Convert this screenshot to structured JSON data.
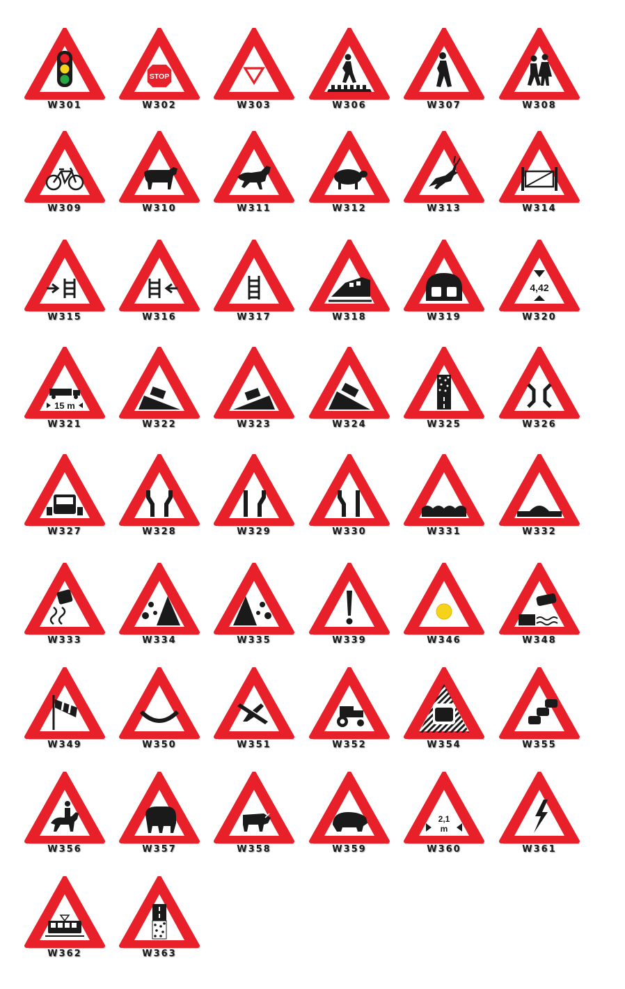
{
  "palette": {
    "border": "#e8202a",
    "field": "#ffffff",
    "symbol": "#1a1a1a",
    "shadow": "#9a9a9a"
  },
  "signs": [
    {
      "code": "W301",
      "symbol": "traffic-light-icon"
    },
    {
      "code": "W302",
      "symbol": "stop-sign-icon",
      "text": "STOP"
    },
    {
      "code": "W303",
      "symbol": "yield-icon"
    },
    {
      "code": "W306",
      "symbol": "pedestrian-crossing-icon"
    },
    {
      "code": "W307",
      "symbol": "pedestrian-icon"
    },
    {
      "code": "W308",
      "symbol": "children-icon"
    },
    {
      "code": "W309",
      "symbol": "bicycle-icon"
    },
    {
      "code": "W310",
      "symbol": "cow-icon"
    },
    {
      "code": "W311",
      "symbol": "horse-icon"
    },
    {
      "code": "W312",
      "symbol": "sheep-icon"
    },
    {
      "code": "W313",
      "symbol": "antelope-icon"
    },
    {
      "code": "W314",
      "symbol": "gate-icon"
    },
    {
      "code": "W315",
      "symbol": "level-crossing-right-icon"
    },
    {
      "code": "W316",
      "symbol": "level-crossing-left-icon"
    },
    {
      "code": "W317",
      "symbol": "level-crossing-icon"
    },
    {
      "code": "W318",
      "symbol": "train-icon"
    },
    {
      "code": "W319",
      "symbol": "tunnel-icon"
    },
    {
      "code": "W320",
      "symbol": "height-limit-icon",
      "text": "4,42"
    },
    {
      "code": "W321",
      "symbol": "length-limit-icon",
      "text": "15 m"
    },
    {
      "code": "W322",
      "symbol": "steep-descent-icon"
    },
    {
      "code": "W323",
      "symbol": "steep-ascent-icon"
    },
    {
      "code": "W324",
      "symbol": "truck-descent-icon"
    },
    {
      "code": "W325",
      "symbol": "gravel-road-icon"
    },
    {
      "code": "W326",
      "symbol": "narrow-bridge-icon"
    },
    {
      "code": "W327",
      "symbol": "narrow-road-truck-icon"
    },
    {
      "code": "W328",
      "symbol": "road-narrows-both-icon"
    },
    {
      "code": "W329",
      "symbol": "road-narrows-right-icon"
    },
    {
      "code": "W330",
      "symbol": "road-narrows-left-icon"
    },
    {
      "code": "W331",
      "symbol": "uneven-road-icon"
    },
    {
      "code": "W332",
      "symbol": "speed-hump-icon"
    },
    {
      "code": "W333",
      "symbol": "slippery-road-icon"
    },
    {
      "code": "W334",
      "symbol": "falling-rocks-left-icon"
    },
    {
      "code": "W335",
      "symbol": "falling-rocks-right-icon"
    },
    {
      "code": "W339",
      "symbol": "general-warning-icon"
    },
    {
      "code": "W346",
      "symbol": "yellow-dot-icon"
    },
    {
      "code": "W348",
      "symbol": "quay-edge-icon"
    },
    {
      "code": "W349",
      "symbol": "windsock-icon"
    },
    {
      "code": "W350",
      "symbol": "dip-icon"
    },
    {
      "code": "W351",
      "symbol": "low-flying-aircraft-icon"
    },
    {
      "code": "W352",
      "symbol": "tractor-icon"
    },
    {
      "code": "W354",
      "symbol": "hazard-car-icon"
    },
    {
      "code": "W355",
      "symbol": "traffic-queue-icon"
    },
    {
      "code": "W356",
      "symbol": "horse-rider-icon"
    },
    {
      "code": "W357",
      "symbol": "elephant-icon"
    },
    {
      "code": "W358",
      "symbol": "warthog-icon"
    },
    {
      "code": "W359",
      "symbol": "hippo-icon"
    },
    {
      "code": "W360",
      "symbol": "width-limit-icon",
      "text": "2,1 m"
    },
    {
      "code": "W361",
      "symbol": "electricity-icon"
    },
    {
      "code": "W362",
      "symbol": "tram-icon"
    },
    {
      "code": "W363",
      "symbol": "gravel-to-tar-icon"
    }
  ]
}
